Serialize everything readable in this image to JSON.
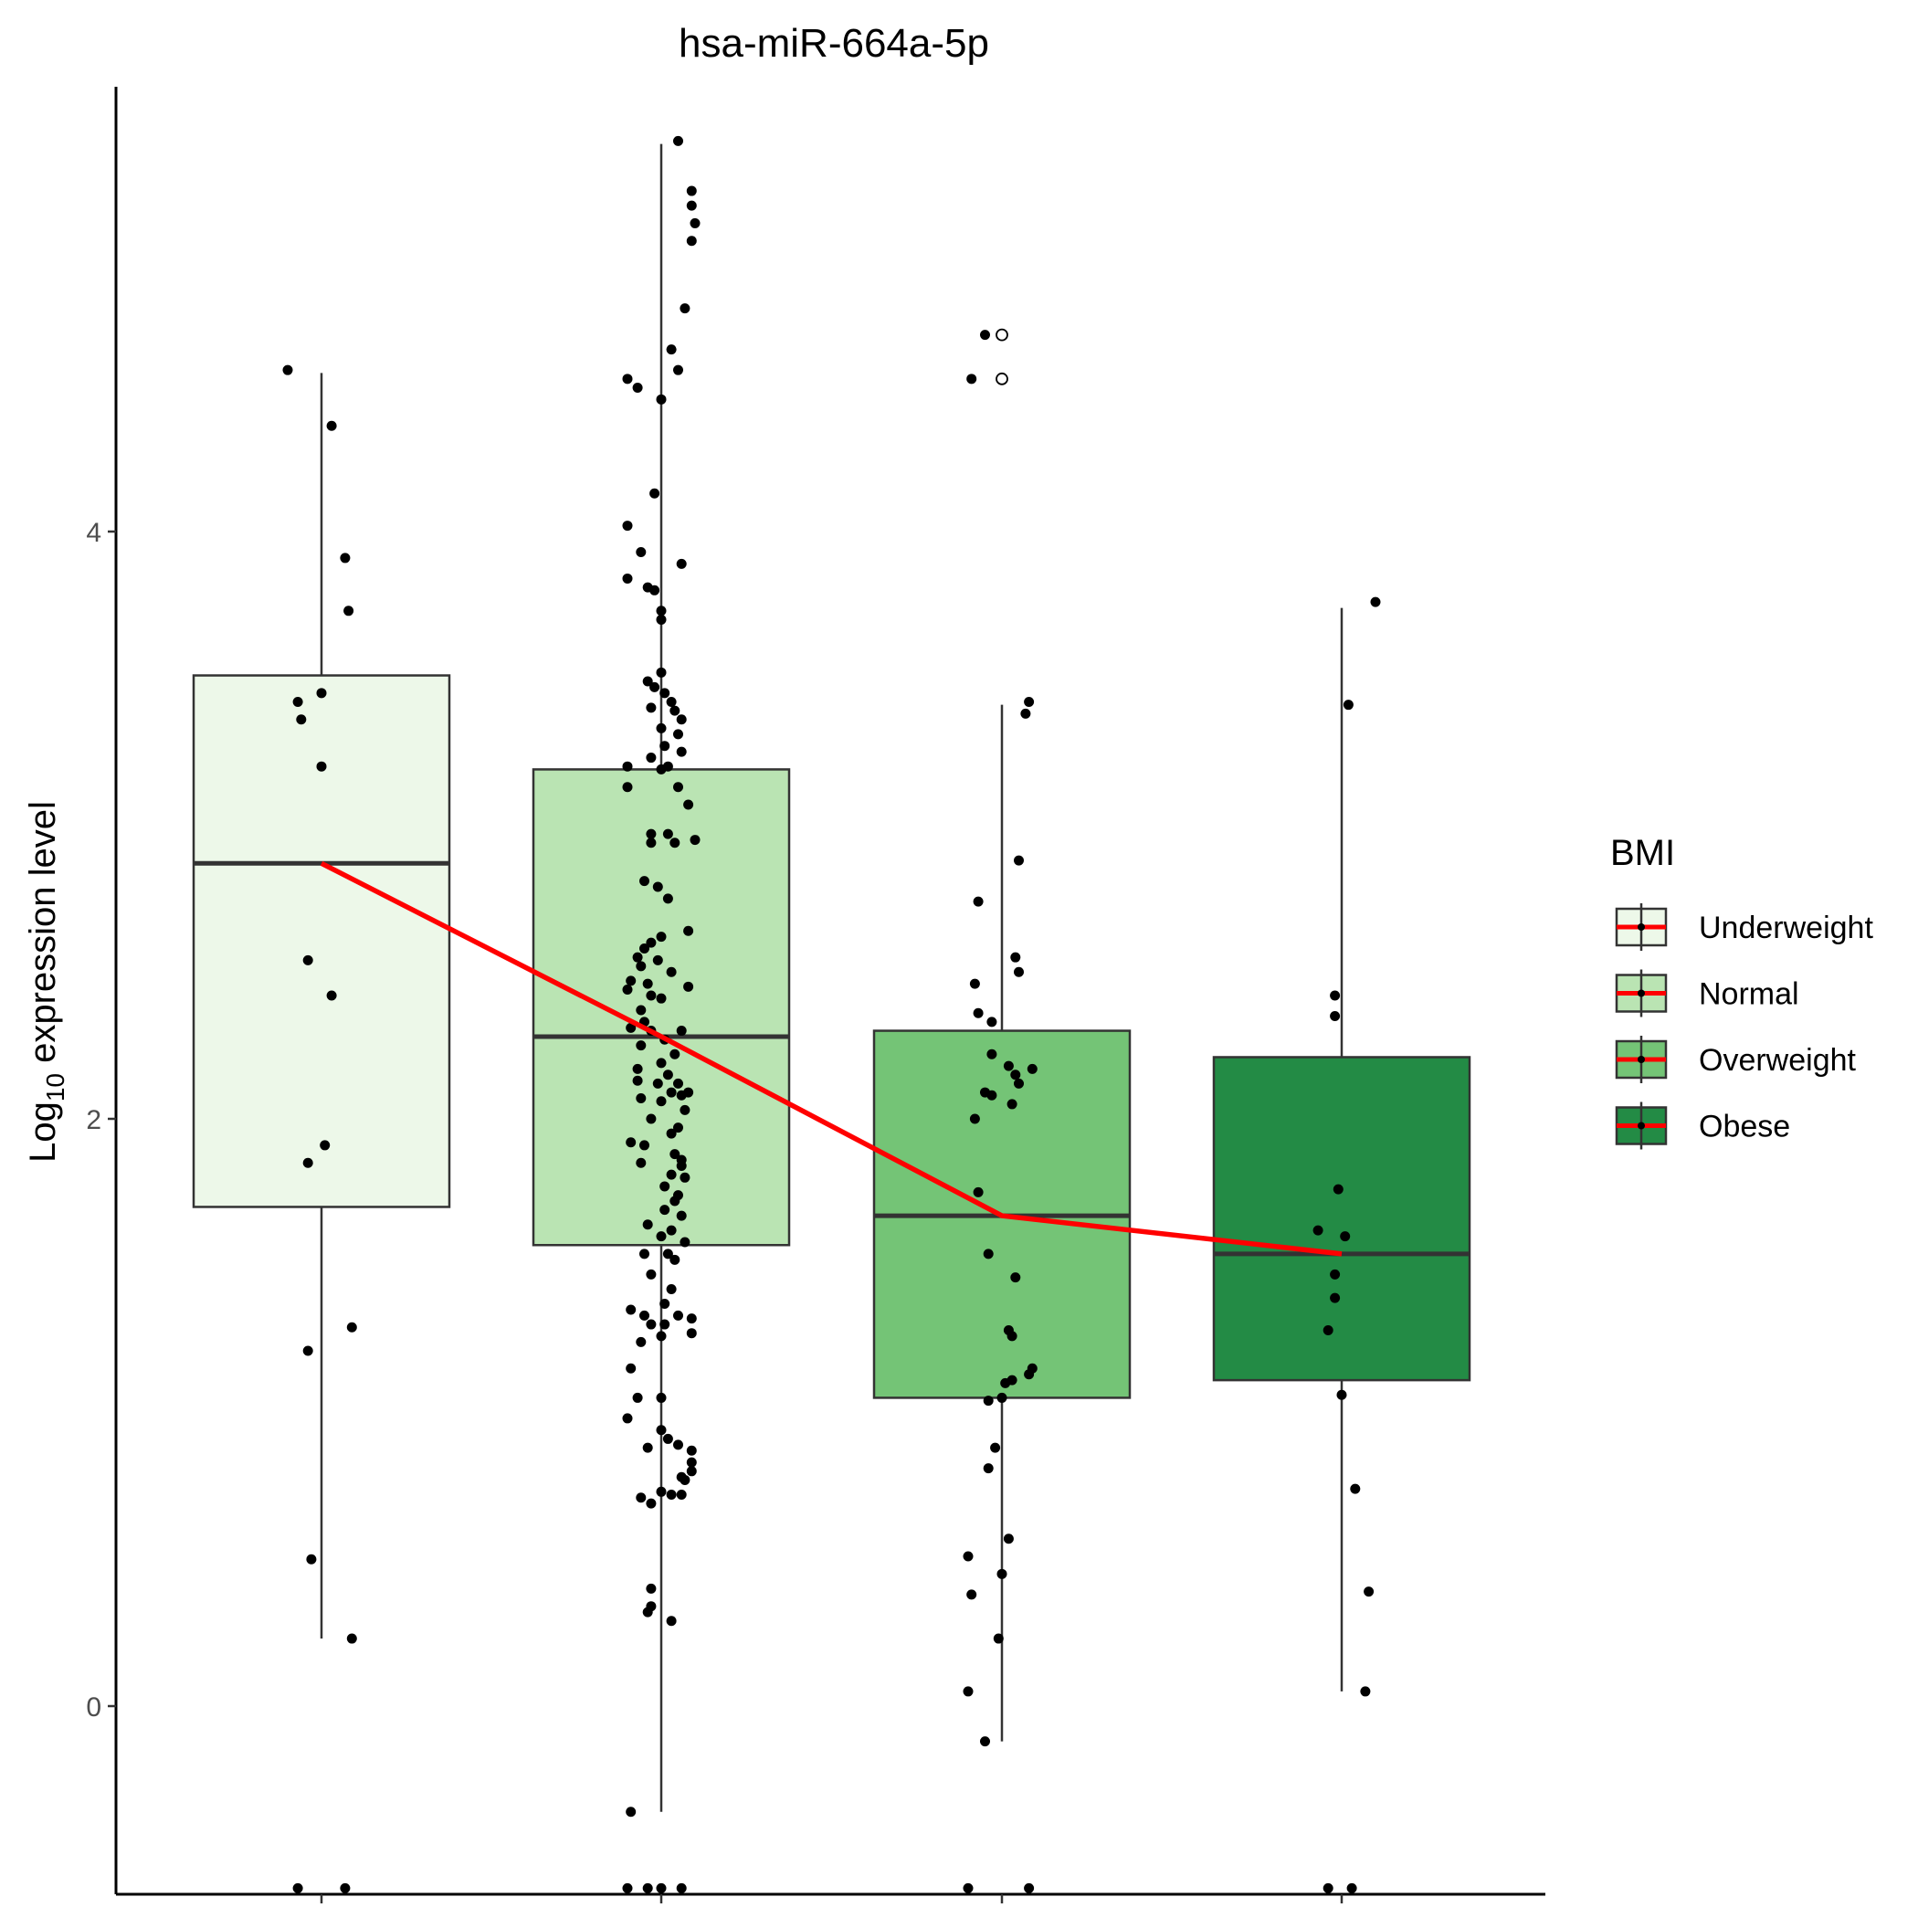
{
  "chart_data": {
    "type": "box",
    "title": "hsa-miR-664a-5p",
    "ylabel_prefix": "Log",
    "ylabel_sub": "10",
    "ylabel_suffix": " expression level",
    "ylim": [
      -0.52,
      5.52
    ],
    "yticks": [
      0,
      2,
      4
    ],
    "grid": false,
    "legend": {
      "title": "BMI",
      "position": "right",
      "entries": [
        "Underweight",
        "Normal",
        "Overweight",
        "Obese"
      ]
    },
    "colors": {
      "Underweight": "#edf8e9",
      "Normal": "#bae4b3",
      "Overweight": "#74c476",
      "Obese": "#238b45",
      "median_line": "#ff0000",
      "box_stroke": "#333333"
    },
    "groups": [
      {
        "name": "Underweight",
        "stats": {
          "whisker_low": 0.23,
          "q1": 1.7,
          "median": 2.87,
          "q3": 3.51,
          "whisker_high": 4.54
        },
        "outliers": [],
        "points": [
          {
            "x": -0.1,
            "y": 4.55
          },
          {
            "x": 0.03,
            "y": 4.36
          },
          {
            "x": 0.07,
            "y": 3.91
          },
          {
            "x": 0.08,
            "y": 3.73
          },
          {
            "x": -0.07,
            "y": 3.42
          },
          {
            "x": -0.06,
            "y": 3.36
          },
          {
            "x": 0.0,
            "y": 3.45
          },
          {
            "x": 0.0,
            "y": 3.2
          },
          {
            "x": -0.04,
            "y": 2.54
          },
          {
            "x": 0.03,
            "y": 2.42
          },
          {
            "x": 0.01,
            "y": 1.91
          },
          {
            "x": -0.04,
            "y": 1.85
          },
          {
            "x": 0.09,
            "y": 1.29
          },
          {
            "x": -0.04,
            "y": 1.21
          },
          {
            "x": -0.03,
            "y": 0.5
          },
          {
            "x": 0.09,
            "y": 0.23
          },
          {
            "x": -0.07,
            "y": -0.62
          },
          {
            "x": 0.07,
            "y": -0.62
          }
        ]
      },
      {
        "name": "Normal",
        "stats": {
          "whisker_low": -0.36,
          "q1": 1.57,
          "median": 2.28,
          "q3": 3.19,
          "whisker_high": 5.32
        },
        "outliers": [],
        "points": [
          {
            "x": 0.05,
            "y": 5.33
          },
          {
            "x": 0.09,
            "y": 5.16
          },
          {
            "x": 0.09,
            "y": 5.11
          },
          {
            "x": 0.1,
            "y": 5.05
          },
          {
            "x": 0.09,
            "y": 4.99
          },
          {
            "x": 0.07,
            "y": 4.76
          },
          {
            "x": 0.03,
            "y": 4.62
          },
          {
            "x": 0.05,
            "y": 4.55
          },
          {
            "x": -0.1,
            "y": 4.52
          },
          {
            "x": -0.07,
            "y": 4.49
          },
          {
            "x": 0.0,
            "y": 4.45
          },
          {
            "x": -0.02,
            "y": 4.13
          },
          {
            "x": -0.1,
            "y": 4.02
          },
          {
            "x": -0.06,
            "y": 3.93
          },
          {
            "x": 0.06,
            "y": 3.89
          },
          {
            "x": -0.1,
            "y": 3.84
          },
          {
            "x": -0.04,
            "y": 3.81
          },
          {
            "x": -0.02,
            "y": 3.8
          },
          {
            "x": 0.0,
            "y": 3.73
          },
          {
            "x": 0.0,
            "y": 3.7
          },
          {
            "x": 0.0,
            "y": 3.52
          },
          {
            "x": -0.04,
            "y": 3.49
          },
          {
            "x": -0.02,
            "y": 3.47
          },
          {
            "x": 0.01,
            "y": 3.45
          },
          {
            "x": 0.03,
            "y": 3.42
          },
          {
            "x": -0.03,
            "y": 3.4
          },
          {
            "x": 0.04,
            "y": 3.39
          },
          {
            "x": 0.06,
            "y": 3.36
          },
          {
            "x": 0.0,
            "y": 3.33
          },
          {
            "x": 0.05,
            "y": 3.31
          },
          {
            "x": 0.01,
            "y": 3.27
          },
          {
            "x": 0.06,
            "y": 3.25
          },
          {
            "x": -0.03,
            "y": 3.23
          },
          {
            "x": 0.02,
            "y": 3.2
          },
          {
            "x": -0.1,
            "y": 3.2
          },
          {
            "x": 0.0,
            "y": 3.19
          },
          {
            "x": 0.05,
            "y": 3.13
          },
          {
            "x": -0.1,
            "y": 3.13
          },
          {
            "x": 0.08,
            "y": 3.07
          },
          {
            "x": -0.03,
            "y": 2.97
          },
          {
            "x": 0.02,
            "y": 2.97
          },
          {
            "x": 0.04,
            "y": 2.94
          },
          {
            "x": -0.03,
            "y": 2.94
          },
          {
            "x": 0.1,
            "y": 2.95
          },
          {
            "x": -0.05,
            "y": 2.81
          },
          {
            "x": -0.01,
            "y": 2.79
          },
          {
            "x": 0.02,
            "y": 2.75
          },
          {
            "x": 0.08,
            "y": 2.64
          },
          {
            "x": 0.0,
            "y": 2.62
          },
          {
            "x": -0.03,
            "y": 2.6
          },
          {
            "x": -0.05,
            "y": 2.58
          },
          {
            "x": -0.07,
            "y": 2.55
          },
          {
            "x": -0.01,
            "y": 2.54
          },
          {
            "x": -0.06,
            "y": 2.52
          },
          {
            "x": 0.03,
            "y": 2.5
          },
          {
            "x": -0.09,
            "y": 2.47
          },
          {
            "x": -0.04,
            "y": 2.46
          },
          {
            "x": 0.08,
            "y": 2.45
          },
          {
            "x": -0.1,
            "y": 2.44
          },
          {
            "x": -0.03,
            "y": 2.42
          },
          {
            "x": 0.0,
            "y": 2.41
          },
          {
            "x": -0.06,
            "y": 2.37
          },
          {
            "x": -0.05,
            "y": 2.33
          },
          {
            "x": -0.09,
            "y": 2.31
          },
          {
            "x": -0.03,
            "y": 2.3
          },
          {
            "x": 0.06,
            "y": 2.3
          },
          {
            "x": 0.01,
            "y": 2.27
          },
          {
            "x": -0.06,
            "y": 2.25
          },
          {
            "x": 0.04,
            "y": 2.22
          },
          {
            "x": 0.0,
            "y": 2.19
          },
          {
            "x": -0.07,
            "y": 2.17
          },
          {
            "x": 0.02,
            "y": 2.15
          },
          {
            "x": -0.07,
            "y": 2.13
          },
          {
            "x": -0.01,
            "y": 2.12
          },
          {
            "x": 0.05,
            "y": 2.12
          },
          {
            "x": 0.03,
            "y": 2.09
          },
          {
            "x": 0.08,
            "y": 2.09
          },
          {
            "x": 0.06,
            "y": 2.08
          },
          {
            "x": -0.06,
            "y": 2.07
          },
          {
            "x": 0.0,
            "y": 2.06
          },
          {
            "x": 0.07,
            "y": 2.03
          },
          {
            "x": -0.03,
            "y": 2.0
          },
          {
            "x": 0.05,
            "y": 1.97
          },
          {
            "x": 0.03,
            "y": 1.95
          },
          {
            "x": -0.09,
            "y": 1.92
          },
          {
            "x": -0.05,
            "y": 1.91
          },
          {
            "x": 0.04,
            "y": 1.88
          },
          {
            "x": 0.06,
            "y": 1.86
          },
          {
            "x": -0.06,
            "y": 1.85
          },
          {
            "x": 0.06,
            "y": 1.84
          },
          {
            "x": 0.03,
            "y": 1.81
          },
          {
            "x": 0.07,
            "y": 1.8
          },
          {
            "x": 0.01,
            "y": 1.77
          },
          {
            "x": 0.05,
            "y": 1.74
          },
          {
            "x": 0.04,
            "y": 1.72
          },
          {
            "x": 0.01,
            "y": 1.69
          },
          {
            "x": 0.06,
            "y": 1.67
          },
          {
            "x": -0.04,
            "y": 1.64
          },
          {
            "x": 0.03,
            "y": 1.62
          },
          {
            "x": 0.0,
            "y": 1.6
          },
          {
            "x": 0.07,
            "y": 1.58
          },
          {
            "x": 0.02,
            "y": 1.54
          },
          {
            "x": -0.05,
            "y": 1.54
          },
          {
            "x": 0.04,
            "y": 1.52
          },
          {
            "x": -0.03,
            "y": 1.47
          },
          {
            "x": 0.03,
            "y": 1.42
          },
          {
            "x": 0.01,
            "y": 1.37
          },
          {
            "x": -0.09,
            "y": 1.35
          },
          {
            "x": 0.05,
            "y": 1.33
          },
          {
            "x": -0.05,
            "y": 1.33
          },
          {
            "x": 0.09,
            "y": 1.32
          },
          {
            "x": 0.01,
            "y": 1.3
          },
          {
            "x": -0.03,
            "y": 1.3
          },
          {
            "x": 0.09,
            "y": 1.27
          },
          {
            "x": 0.0,
            "y": 1.26
          },
          {
            "x": -0.06,
            "y": 1.24
          },
          {
            "x": -0.09,
            "y": 1.15
          },
          {
            "x": -0.07,
            "y": 1.05
          },
          {
            "x": 0.0,
            "y": 1.05
          },
          {
            "x": -0.1,
            "y": 0.98
          },
          {
            "x": 0.0,
            "y": 0.94
          },
          {
            "x": 0.02,
            "y": 0.91
          },
          {
            "x": 0.05,
            "y": 0.89
          },
          {
            "x": -0.04,
            "y": 0.88
          },
          {
            "x": 0.09,
            "y": 0.87
          },
          {
            "x": 0.09,
            "y": 0.83
          },
          {
            "x": 0.09,
            "y": 0.8
          },
          {
            "x": 0.06,
            "y": 0.78
          },
          {
            "x": 0.07,
            "y": 0.77
          },
          {
            "x": 0.0,
            "y": 0.73
          },
          {
            "x": 0.03,
            "y": 0.72
          },
          {
            "x": 0.06,
            "y": 0.72
          },
          {
            "x": -0.06,
            "y": 0.71
          },
          {
            "x": -0.03,
            "y": 0.69
          },
          {
            "x": -0.03,
            "y": 0.4
          },
          {
            "x": -0.03,
            "y": 0.34
          },
          {
            "x": -0.04,
            "y": 0.32
          },
          {
            "x": 0.03,
            "y": 0.29
          },
          {
            "x": -0.09,
            "y": -0.36
          },
          {
            "x": -0.1,
            "y": -0.62
          },
          {
            "x": -0.04,
            "y": -0.62
          },
          {
            "x": 0.0,
            "y": -0.62
          },
          {
            "x": 0.06,
            "y": -0.62
          }
        ]
      },
      {
        "name": "Overweight",
        "stats": {
          "whisker_low": -0.12,
          "q1": 1.05,
          "median": 1.67,
          "q3": 2.3,
          "whisker_high": 3.41
        },
        "outliers": [
          4.67,
          4.52
        ],
        "points": [
          {
            "x": -0.05,
            "y": 4.67
          },
          {
            "x": -0.09,
            "y": 4.52
          },
          {
            "x": 0.08,
            "y": 3.42
          },
          {
            "x": 0.07,
            "y": 3.38
          },
          {
            "x": 0.05,
            "y": 2.88
          },
          {
            "x": -0.07,
            "y": 2.74
          },
          {
            "x": 0.04,
            "y": 2.55
          },
          {
            "x": 0.05,
            "y": 2.5
          },
          {
            "x": -0.08,
            "y": 2.46
          },
          {
            "x": -0.07,
            "y": 2.36
          },
          {
            "x": -0.03,
            "y": 2.33
          },
          {
            "x": -0.03,
            "y": 2.22
          },
          {
            "x": 0.02,
            "y": 2.18
          },
          {
            "x": 0.04,
            "y": 2.15
          },
          {
            "x": 0.09,
            "y": 2.17
          },
          {
            "x": 0.05,
            "y": 2.12
          },
          {
            "x": -0.05,
            "y": 2.09
          },
          {
            "x": -0.03,
            "y": 2.08
          },
          {
            "x": 0.03,
            "y": 2.05
          },
          {
            "x": -0.08,
            "y": 2.0
          },
          {
            "x": -0.07,
            "y": 1.75
          },
          {
            "x": -0.04,
            "y": 1.54
          },
          {
            "x": 0.04,
            "y": 1.46
          },
          {
            "x": 0.02,
            "y": 1.28
          },
          {
            "x": 0.03,
            "y": 1.26
          },
          {
            "x": 0.09,
            "y": 1.15
          },
          {
            "x": 0.08,
            "y": 1.13
          },
          {
            "x": 0.03,
            "y": 1.11
          },
          {
            "x": 0.01,
            "y": 1.1
          },
          {
            "x": 0.0,
            "y": 1.05
          },
          {
            "x": -0.04,
            "y": 1.04
          },
          {
            "x": -0.02,
            "y": 0.88
          },
          {
            "x": -0.04,
            "y": 0.81
          },
          {
            "x": 0.02,
            "y": 0.57
          },
          {
            "x": -0.1,
            "y": 0.51
          },
          {
            "x": 0.0,
            "y": 0.45
          },
          {
            "x": -0.09,
            "y": 0.38
          },
          {
            "x": -0.01,
            "y": 0.23
          },
          {
            "x": -0.1,
            "y": 0.05
          },
          {
            "x": -0.05,
            "y": -0.12
          },
          {
            "x": -0.1,
            "y": -0.62
          },
          {
            "x": 0.08,
            "y": -0.62
          }
        ]
      },
      {
        "name": "Obese",
        "stats": {
          "whisker_low": 0.05,
          "q1": 1.11,
          "median": 1.54,
          "q3": 2.21,
          "whisker_high": 3.74
        },
        "outliers": [],
        "points": [
          {
            "x": 0.1,
            "y": 3.76
          },
          {
            "x": 0.02,
            "y": 3.41
          },
          {
            "x": -0.02,
            "y": 2.42
          },
          {
            "x": -0.02,
            "y": 2.35
          },
          {
            "x": -0.01,
            "y": 1.76
          },
          {
            "x": -0.07,
            "y": 1.62
          },
          {
            "x": 0.01,
            "y": 1.6
          },
          {
            "x": -0.02,
            "y": 1.47
          },
          {
            "x": -0.02,
            "y": 1.39
          },
          {
            "x": -0.04,
            "y": 1.28
          },
          {
            "x": 0.0,
            "y": 1.06
          },
          {
            "x": 0.04,
            "y": 0.74
          },
          {
            "x": 0.08,
            "y": 0.39
          },
          {
            "x": 0.07,
            "y": 0.05
          },
          {
            "x": -0.04,
            "y": -0.62
          },
          {
            "x": 0.03,
            "y": -0.62
          }
        ]
      }
    ]
  }
}
